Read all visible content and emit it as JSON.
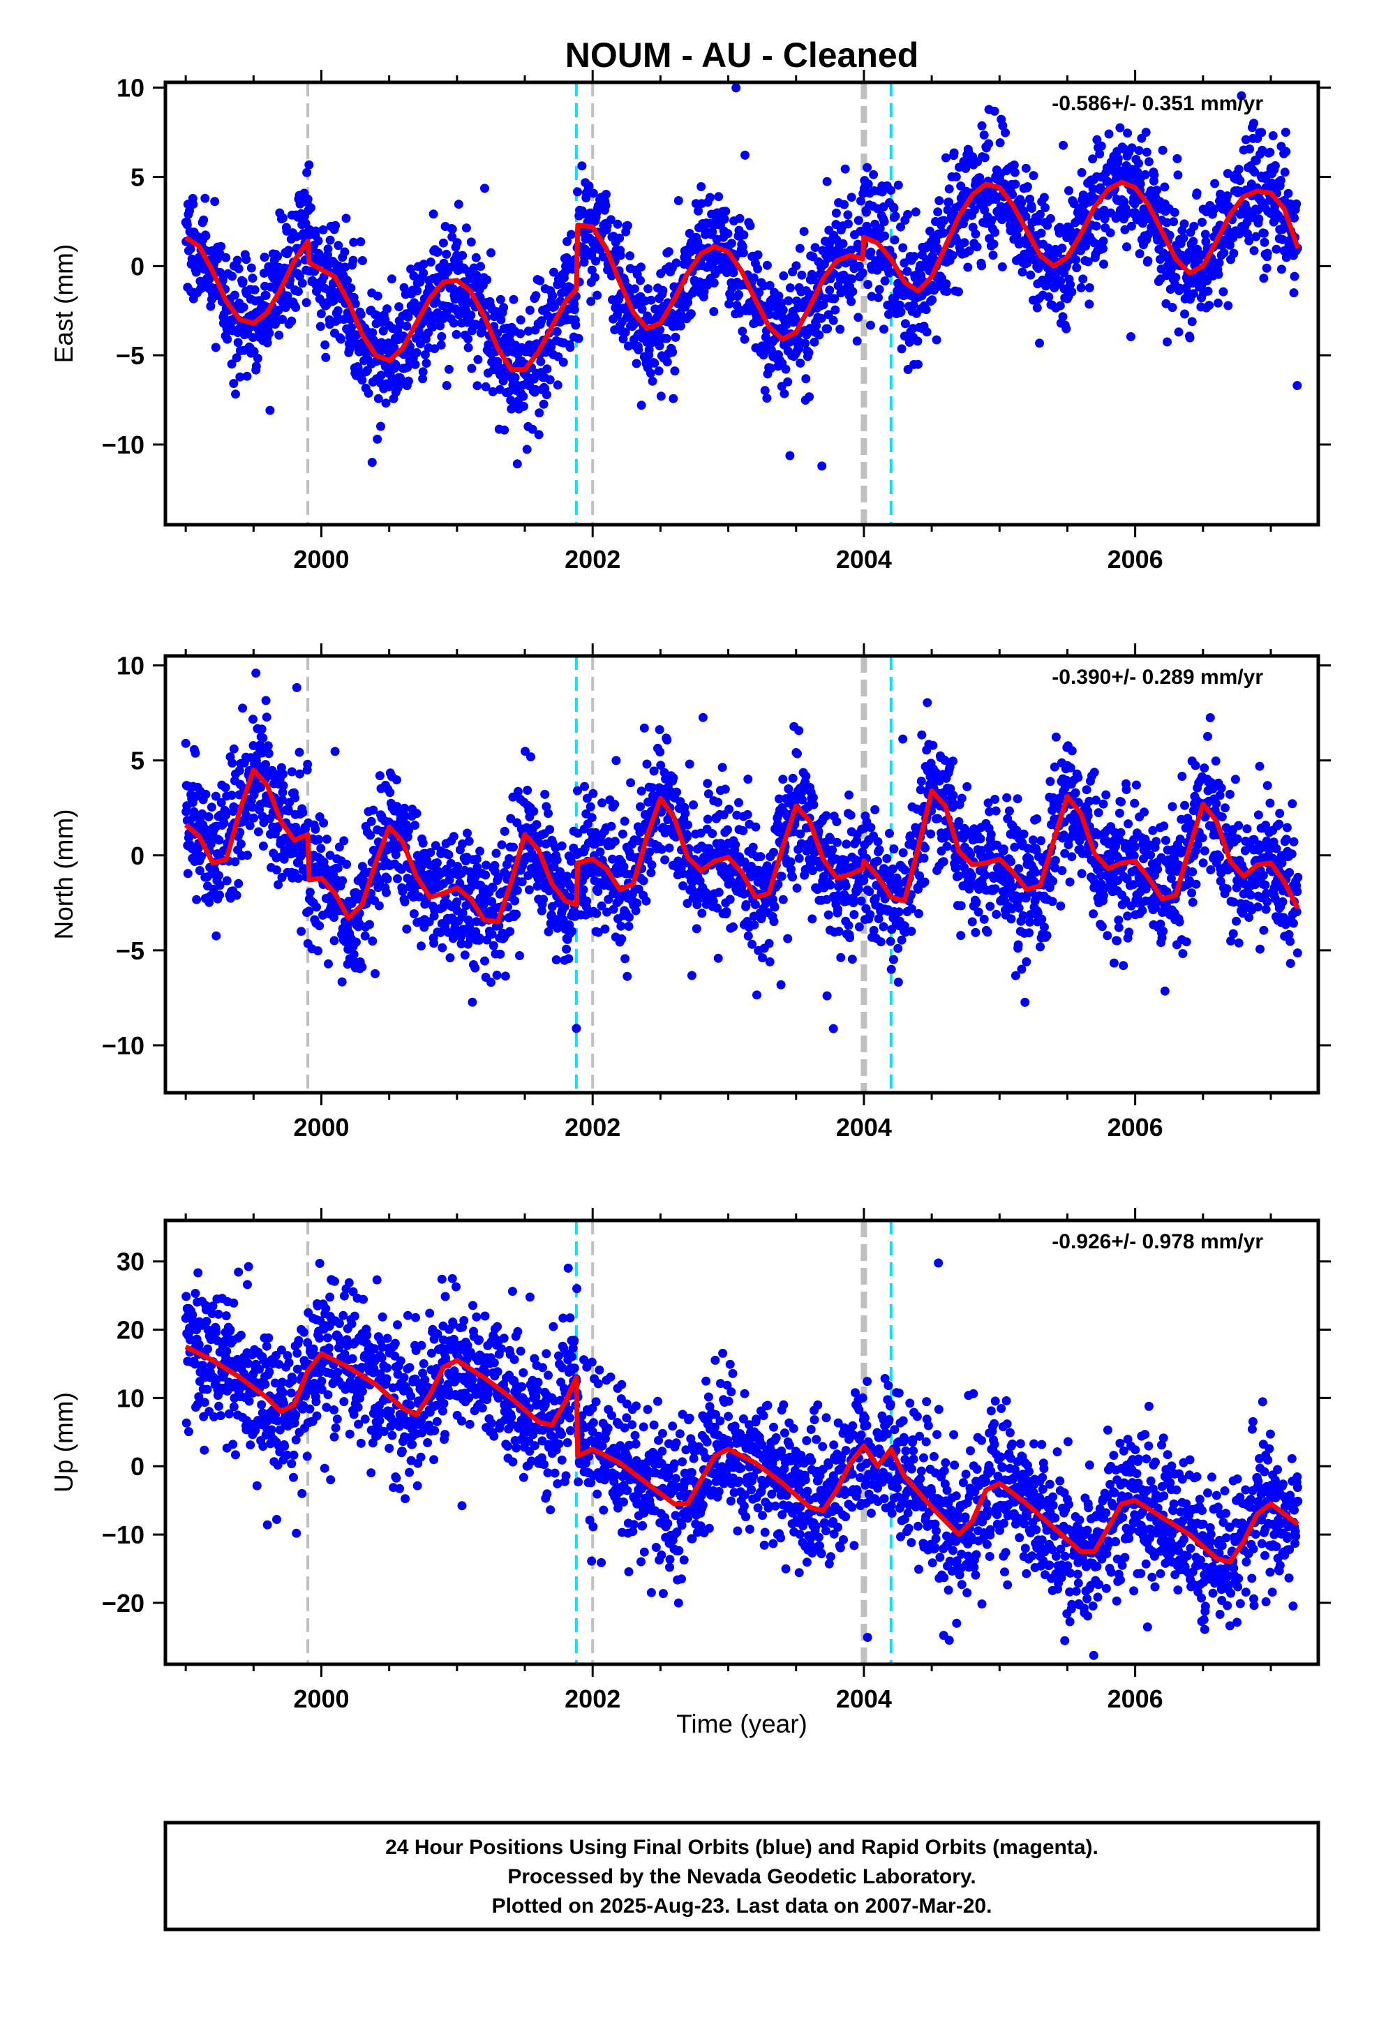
{
  "title": "NOUM  - AU - Cleaned",
  "xlabel": "Time (year)",
  "footer": {
    "line1": "24 Hour Positions Using Final Orbits (blue) and Rapid Orbits (magenta).",
    "line2": "Processed by the Nevada Geodetic Laboratory.",
    "line3": "Plotted on 2025-Aug-23. Last data on 2007-Mar-20."
  },
  "colors": {
    "points": "#0000ff",
    "model": "#ff0000",
    "gray_line": "#c0c0c0",
    "cyan_line": "#00e5ff",
    "frame": "#000000"
  },
  "chart_data": [
    {
      "type": "scatter",
      "component": "east",
      "ylabel": "East (mm)",
      "rate_label": "-0.586+/- 0.351 mm/yr",
      "xlim": [
        1998.85,
        2007.35
      ],
      "ylim": [
        -14.5,
        10.3
      ],
      "x_ticks": [
        2000,
        2002,
        2004,
        2006
      ],
      "x_tick_labels": [
        "2000",
        "2002",
        "2004",
        "2006"
      ],
      "y_ticks": [
        10,
        5,
        0,
        -5,
        -10
      ],
      "y_tick_labels": [
        "10",
        "5",
        "0",
        "−5",
        "−10"
      ],
      "vlines_gray": [
        1999.9,
        2002.0
      ],
      "vlines_gray_thick": [
        2004.0
      ],
      "vlines_cyan": [
        2001.88,
        2004.2
      ],
      "model_knots": [
        [
          1999.0,
          1.6
        ],
        [
          1999.1,
          1.1
        ],
        [
          1999.2,
          -0.3
        ],
        [
          1999.3,
          -2.0
        ],
        [
          1999.4,
          -3.0
        ],
        [
          1999.5,
          -3.2
        ],
        [
          1999.6,
          -2.6
        ],
        [
          1999.7,
          -1.3
        ],
        [
          1999.8,
          0.3
        ],
        [
          1999.9,
          1.4
        ],
        [
          1999.91,
          0.2
        ],
        [
          2000.0,
          -0.2
        ],
        [
          2000.1,
          -0.6
        ],
        [
          2000.2,
          -2.0
        ],
        [
          2000.3,
          -3.8
        ],
        [
          2000.4,
          -5.0
        ],
        [
          2000.5,
          -5.3
        ],
        [
          2000.6,
          -4.6
        ],
        [
          2000.7,
          -3.2
        ],
        [
          2000.8,
          -1.8
        ],
        [
          2000.9,
          -0.9
        ],
        [
          2001.0,
          -0.8
        ],
        [
          2001.1,
          -1.4
        ],
        [
          2001.2,
          -2.8
        ],
        [
          2001.3,
          -4.6
        ],
        [
          2001.4,
          -5.8
        ],
        [
          2001.5,
          -5.8
        ],
        [
          2001.6,
          -4.8
        ],
        [
          2001.7,
          -3.4
        ],
        [
          2001.8,
          -2.0
        ],
        [
          2001.88,
          -1.3
        ],
        [
          2001.89,
          2.3
        ],
        [
          2002.0,
          2.2
        ],
        [
          2002.1,
          1.0
        ],
        [
          2002.2,
          -0.9
        ],
        [
          2002.3,
          -2.6
        ],
        [
          2002.4,
          -3.5
        ],
        [
          2002.5,
          -3.2
        ],
        [
          2002.6,
          -1.9
        ],
        [
          2002.7,
          -0.4
        ],
        [
          2002.8,
          0.7
        ],
        [
          2002.9,
          1.1
        ],
        [
          2003.0,
          0.8
        ],
        [
          2003.1,
          -0.3
        ],
        [
          2003.2,
          -1.9
        ],
        [
          2003.3,
          -3.4
        ],
        [
          2003.4,
          -4.1
        ],
        [
          2003.5,
          -3.7
        ],
        [
          2003.6,
          -2.3
        ],
        [
          2003.7,
          -0.7
        ],
        [
          2003.8,
          0.3
        ],
        [
          2003.9,
          0.6
        ],
        [
          2003.99,
          0.4
        ],
        [
          2004.0,
          1.6
        ],
        [
          2004.1,
          1.3
        ],
        [
          2004.2,
          0.4
        ],
        [
          2004.3,
          -0.9
        ],
        [
          2004.4,
          -1.4
        ],
        [
          2004.5,
          -0.6
        ],
        [
          2004.6,
          1.1
        ],
        [
          2004.7,
          2.8
        ],
        [
          2004.8,
          4.0
        ],
        [
          2004.9,
          4.6
        ],
        [
          2005.0,
          4.4
        ],
        [
          2005.1,
          3.4
        ],
        [
          2005.2,
          2.0
        ],
        [
          2005.3,
          0.6
        ],
        [
          2005.4,
          0.0
        ],
        [
          2005.5,
          0.5
        ],
        [
          2005.6,
          1.8
        ],
        [
          2005.7,
          3.3
        ],
        [
          2005.8,
          4.3
        ],
        [
          2005.9,
          4.7
        ],
        [
          2006.0,
          4.4
        ],
        [
          2006.1,
          3.4
        ],
        [
          2006.2,
          1.9
        ],
        [
          2006.3,
          0.4
        ],
        [
          2006.4,
          -0.4
        ],
        [
          2006.5,
          0.0
        ],
        [
          2006.6,
          1.4
        ],
        [
          2006.7,
          2.9
        ],
        [
          2006.8,
          3.9
        ],
        [
          2006.9,
          4.2
        ],
        [
          2007.0,
          4.1
        ],
        [
          2007.1,
          3.2
        ],
        [
          2007.2,
          1.0
        ]
      ]
    },
    {
      "type": "scatter",
      "component": "north",
      "ylabel": "North (mm)",
      "rate_label": "-0.390+/- 0.289 mm/yr",
      "xlim": [
        1998.85,
        2007.35
      ],
      "ylim": [
        -12.5,
        10.5
      ],
      "x_ticks": [
        2000,
        2002,
        2004,
        2006
      ],
      "x_tick_labels": [
        "2000",
        "2002",
        "2004",
        "2006"
      ],
      "y_ticks": [
        10,
        5,
        0,
        -5,
        -10
      ],
      "y_tick_labels": [
        "10",
        "5",
        "0",
        "−5",
        "−10"
      ],
      "vlines_gray": [
        1999.9,
        2002.0
      ],
      "vlines_gray_thick": [
        2004.0
      ],
      "vlines_cyan": [
        2001.88,
        2004.2
      ],
      "model_knots": [
        [
          1999.0,
          1.6
        ],
        [
          1999.1,
          1.0
        ],
        [
          1999.2,
          -0.4
        ],
        [
          1999.3,
          -0.2
        ],
        [
          1999.4,
          2.4
        ],
        [
          1999.5,
          4.5
        ],
        [
          1999.6,
          3.7
        ],
        [
          1999.7,
          1.8
        ],
        [
          1999.8,
          0.8
        ],
        [
          1999.9,
          1.1
        ],
        [
          1999.91,
          -1.3
        ],
        [
          2000.0,
          -1.2
        ],
        [
          2000.1,
          -2.0
        ],
        [
          2000.2,
          -3.3
        ],
        [
          2000.3,
          -2.6
        ],
        [
          2000.4,
          -0.4
        ],
        [
          2000.5,
          1.5
        ],
        [
          2000.6,
          0.7
        ],
        [
          2000.7,
          -1.1
        ],
        [
          2000.8,
          -2.2
        ],
        [
          2000.9,
          -2.0
        ],
        [
          2001.0,
          -1.7
        ],
        [
          2001.1,
          -2.3
        ],
        [
          2001.2,
          -3.4
        ],
        [
          2001.3,
          -3.5
        ],
        [
          2001.4,
          -1.4
        ],
        [
          2001.5,
          1.1
        ],
        [
          2001.6,
          0.3
        ],
        [
          2001.7,
          -1.5
        ],
        [
          2001.8,
          -2.4
        ],
        [
          2001.88,
          -2.6
        ],
        [
          2001.89,
          -0.4
        ],
        [
          2002.0,
          -0.2
        ],
        [
          2002.1,
          -0.7
        ],
        [
          2002.2,
          -1.8
        ],
        [
          2002.3,
          -1.5
        ],
        [
          2002.4,
          1.0
        ],
        [
          2002.5,
          3.0
        ],
        [
          2002.6,
          2.0
        ],
        [
          2002.7,
          -0.1
        ],
        [
          2002.8,
          -0.8
        ],
        [
          2002.9,
          -0.3
        ],
        [
          2003.0,
          -0.1
        ],
        [
          2003.1,
          -0.9
        ],
        [
          2003.2,
          -2.2
        ],
        [
          2003.3,
          -2.0
        ],
        [
          2003.4,
          0.4
        ],
        [
          2003.5,
          2.6
        ],
        [
          2003.6,
          1.8
        ],
        [
          2003.7,
          -0.2
        ],
        [
          2003.8,
          -1.2
        ],
        [
          2003.9,
          -1.0
        ],
        [
          2003.99,
          -0.7
        ],
        [
          2004.0,
          -0.3
        ],
        [
          2004.1,
          -1.1
        ],
        [
          2004.2,
          -2.2
        ],
        [
          2004.3,
          -2.4
        ],
        [
          2004.4,
          0.4
        ],
        [
          2004.5,
          3.4
        ],
        [
          2004.6,
          2.6
        ],
        [
          2004.7,
          0.2
        ],
        [
          2004.8,
          -0.5
        ],
        [
          2004.9,
          -0.4
        ],
        [
          2005.0,
          -0.2
        ],
        [
          2005.1,
          -0.9
        ],
        [
          2005.2,
          -1.8
        ],
        [
          2005.3,
          -1.6
        ],
        [
          2005.4,
          0.8
        ],
        [
          2005.5,
          3.1
        ],
        [
          2005.6,
          2.2
        ],
        [
          2005.7,
          0.1
        ],
        [
          2005.8,
          -0.7
        ],
        [
          2005.9,
          -0.4
        ],
        [
          2006.0,
          -0.3
        ],
        [
          2006.1,
          -1.2
        ],
        [
          2006.2,
          -2.3
        ],
        [
          2006.3,
          -2.1
        ],
        [
          2006.4,
          0.4
        ],
        [
          2006.5,
          2.7
        ],
        [
          2006.6,
          1.8
        ],
        [
          2006.7,
          -0.3
        ],
        [
          2006.8,
          -1.1
        ],
        [
          2006.9,
          -0.5
        ],
        [
          2007.0,
          -0.4
        ],
        [
          2007.1,
          -1.4
        ],
        [
          2007.2,
          -2.8
        ]
      ]
    },
    {
      "type": "scatter",
      "component": "up",
      "ylabel": "Up (mm)",
      "rate_label": "-0.926+/- 0.978 mm/yr",
      "xlim": [
        1998.85,
        2007.35
      ],
      "ylim": [
        -29,
        36
      ],
      "x_ticks": [
        2000,
        2002,
        2004,
        2006
      ],
      "x_tick_labels": [
        "2000",
        "2002",
        "2004",
        "2006"
      ],
      "y_ticks": [
        30,
        20,
        10,
        0,
        -10,
        -20
      ],
      "y_tick_labels": [
        "30",
        "20",
        "10",
        "0",
        "−10",
        "−20"
      ],
      "vlines_gray": [
        1999.9,
        2002.0
      ],
      "vlines_gray_thick": [
        2004.0
      ],
      "vlines_cyan": [
        2001.88,
        2004.2
      ],
      "model_knots": [
        [
          1999.0,
          17.5
        ],
        [
          1999.2,
          15.5
        ],
        [
          1999.4,
          13.0
        ],
        [
          1999.6,
          10.0
        ],
        [
          1999.7,
          8.0
        ],
        [
          1999.8,
          9.0
        ],
        [
          1999.9,
          14.0
        ],
        [
          2000.0,
          16.5
        ],
        [
          2000.2,
          14.5
        ],
        [
          2000.4,
          12.0
        ],
        [
          2000.6,
          8.5
        ],
        [
          2000.7,
          7.5
        ],
        [
          2000.8,
          10.5
        ],
        [
          2000.9,
          14.5
        ],
        [
          2001.0,
          15.5
        ],
        [
          2001.2,
          13.0
        ],
        [
          2001.4,
          10.0
        ],
        [
          2001.6,
          6.5
        ],
        [
          2001.7,
          6.0
        ],
        [
          2001.8,
          9.5
        ],
        [
          2001.88,
          13.0
        ],
        [
          2001.89,
          1.5
        ],
        [
          2002.0,
          2.5
        ],
        [
          2002.2,
          0.5
        ],
        [
          2002.4,
          -2.5
        ],
        [
          2002.6,
          -5.5
        ],
        [
          2002.7,
          -5.5
        ],
        [
          2002.8,
          -2.0
        ],
        [
          2002.9,
          1.5
        ],
        [
          2003.0,
          2.5
        ],
        [
          2003.2,
          0.5
        ],
        [
          2003.4,
          -2.5
        ],
        [
          2003.6,
          -6.0
        ],
        [
          2003.7,
          -6.5
        ],
        [
          2003.8,
          -3.5
        ],
        [
          2003.9,
          0.5
        ],
        [
          2004.0,
          3.0
        ],
        [
          2004.1,
          0.0
        ],
        [
          2004.2,
          2.5
        ],
        [
          2004.3,
          -1.5
        ],
        [
          2004.5,
          -6.0
        ],
        [
          2004.7,
          -10.0
        ],
        [
          2004.8,
          -8.0
        ],
        [
          2004.9,
          -3.5
        ],
        [
          2005.0,
          -2.5
        ],
        [
          2005.2,
          -5.5
        ],
        [
          2005.4,
          -9.0
        ],
        [
          2005.6,
          -12.5
        ],
        [
          2005.7,
          -12.5
        ],
        [
          2005.8,
          -9.0
        ],
        [
          2005.9,
          -5.5
        ],
        [
          2006.0,
          -5.0
        ],
        [
          2006.2,
          -7.5
        ],
        [
          2006.4,
          -10.0
        ],
        [
          2006.6,
          -13.5
        ],
        [
          2006.7,
          -14.0
        ],
        [
          2006.8,
          -11.0
        ],
        [
          2006.9,
          -7.0
        ],
        [
          2007.0,
          -5.5
        ],
        [
          2007.2,
          -8.5
        ]
      ]
    }
  ]
}
